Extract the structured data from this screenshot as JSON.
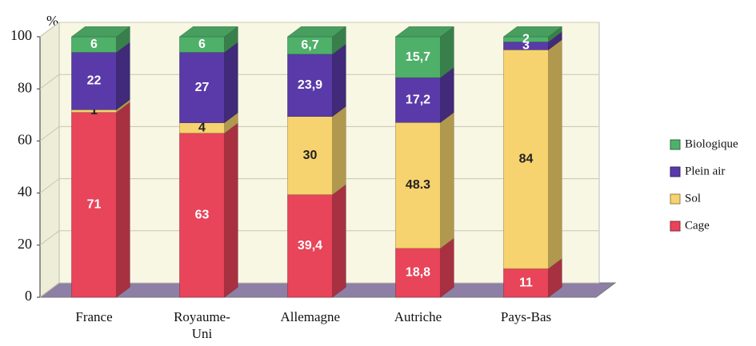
{
  "chart_data": {
    "type": "bar3d_stacked",
    "ylabel": "%",
    "categories": [
      "France",
      "Royaume-Uni",
      "Allemagne",
      "Autriche",
      "Pays-Bas"
    ],
    "series": [
      {
        "name": "Cage",
        "color": "#e8445a",
        "values": [
          71,
          63,
          39.4,
          18.8,
          11
        ],
        "value_labels": [
          "71",
          "63",
          "39,4",
          "18,8",
          "11"
        ]
      },
      {
        "name": "Sol",
        "color": "#f6d36e",
        "values": [
          1,
          4,
          30,
          48.3,
          84
        ],
        "value_labels": [
          "1",
          "4",
          "30",
          "48.3",
          "84"
        ]
      },
      {
        "name": "Plein air",
        "color": "#5a3aa8",
        "values": [
          22,
          27,
          23.9,
          17.2,
          3
        ],
        "value_labels": [
          "22",
          "27",
          "23,9",
          "17,2",
          "3"
        ]
      },
      {
        "name": "Biologique",
        "color": "#4fb06a",
        "values": [
          6,
          6,
          6.7,
          15.7,
          2
        ],
        "value_labels": [
          "6",
          "6",
          "6,7",
          "15,7",
          "2"
        ]
      }
    ],
    "ylim": [
      0,
      100
    ],
    "yticks": [
      0,
      20,
      40,
      60,
      80,
      100
    ],
    "grid": true,
    "legend": "right"
  }
}
